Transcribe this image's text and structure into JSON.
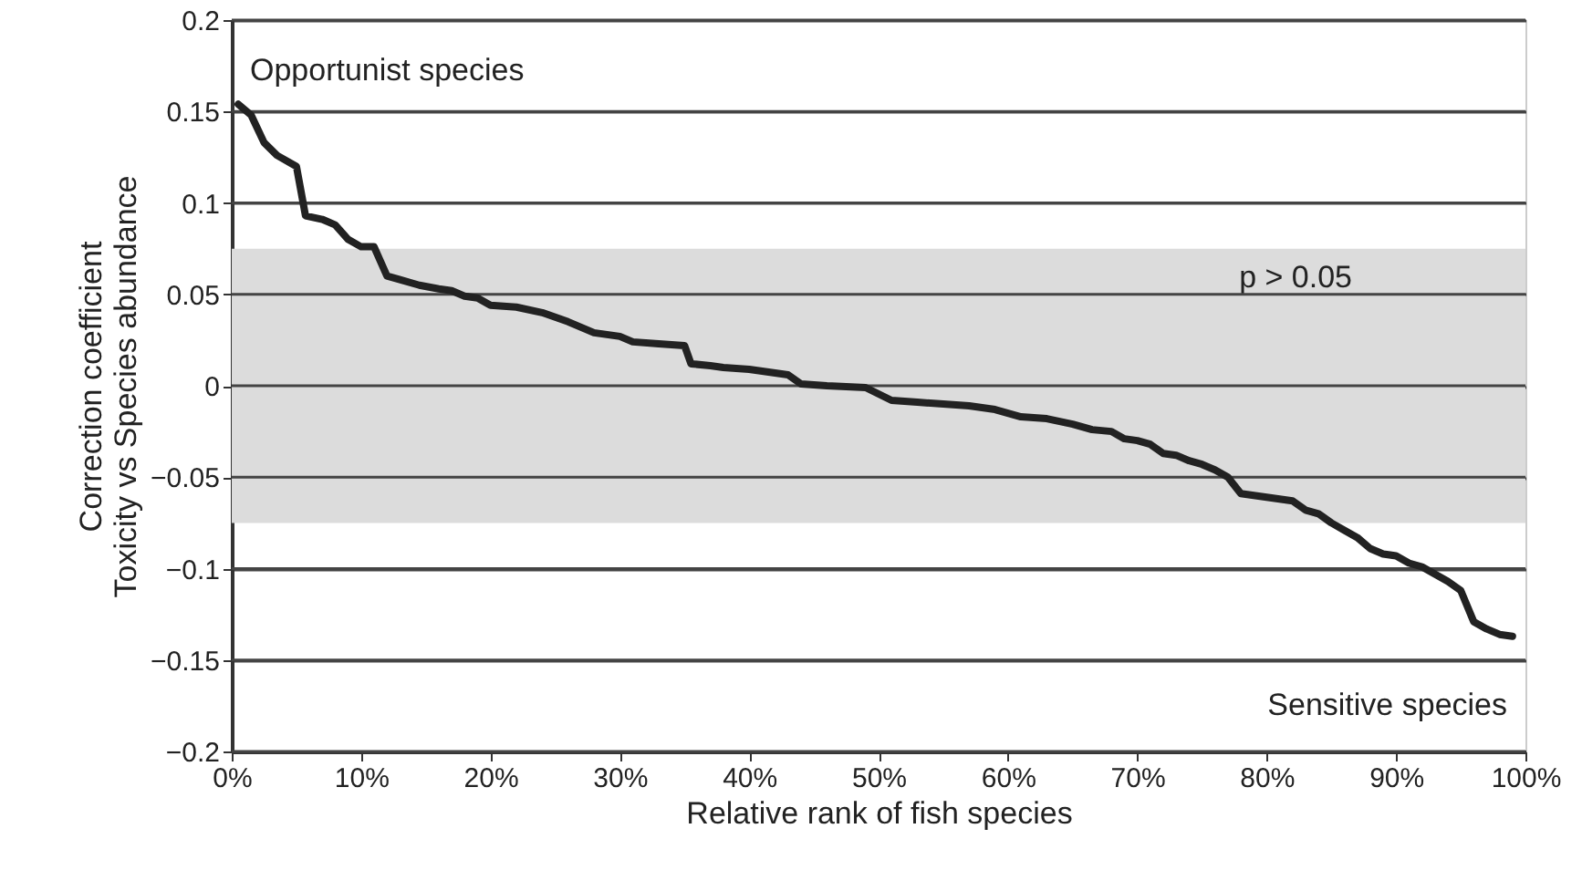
{
  "chart_data": {
    "type": "line",
    "xlabel": "Relative rank of fish species",
    "ylabel": "Correction coefficient\nToxicity vs Species abundance",
    "x": [
      0.5,
      1.5,
      2.5,
      3.5,
      5,
      5.7,
      7,
      8,
      9,
      10,
      11,
      12,
      13,
      14.5,
      16,
      17,
      18,
      19,
      20,
      22,
      24,
      26,
      28,
      30,
      31,
      33,
      35,
      35.5,
      37,
      38,
      40,
      42,
      43,
      44,
      46,
      49,
      51,
      53,
      55,
      57,
      59,
      61,
      63,
      65,
      66.5,
      68,
      69,
      70,
      71,
      72,
      73,
      74,
      75,
      76,
      77,
      78,
      79,
      80,
      82,
      83,
      84,
      85,
      86,
      87,
      88,
      89,
      90,
      91,
      92,
      93,
      94,
      95,
      96,
      97,
      98,
      99
    ],
    "series": [
      {
        "color": "#222222",
        "values": [
          0.154,
          0.148,
          0.133,
          0.126,
          0.12,
          0.093,
          0.091,
          0.088,
          0.08,
          0.076,
          0.076,
          0.06,
          0.058,
          0.055,
          0.053,
          0.052,
          0.049,
          0.048,
          0.044,
          0.043,
          0.04,
          0.035,
          0.029,
          0.027,
          0.024,
          0.023,
          0.022,
          0.012,
          0.011,
          0.01,
          0.009,
          0.007,
          0.006,
          0.001,
          0.0,
          -0.001,
          -0.008,
          -0.009,
          -0.01,
          -0.011,
          -0.013,
          -0.017,
          -0.018,
          -0.021,
          -0.024,
          -0.025,
          -0.029,
          -0.03,
          -0.032,
          -0.037,
          -0.038,
          -0.041,
          -0.043,
          -0.046,
          -0.05,
          -0.059,
          -0.06,
          -0.061,
          -0.063,
          -0.068,
          -0.07,
          -0.075,
          -0.079,
          -0.083,
          -0.089,
          -0.092,
          -0.093,
          -0.097,
          -0.099,
          -0.103,
          -0.107,
          -0.112,
          -0.129,
          -0.133,
          -0.136,
          -0.137
        ]
      }
    ],
    "xlim": [
      0,
      100
    ],
    "xticks": [
      {
        "value": 0,
        "label": "0%"
      },
      {
        "value": 10,
        "label": "10%"
      },
      {
        "value": 20,
        "label": "20%"
      },
      {
        "value": 30,
        "label": "30%"
      },
      {
        "value": 40,
        "label": "40%"
      },
      {
        "value": 50,
        "label": "50%"
      },
      {
        "value": 60,
        "label": "60%"
      },
      {
        "value": 70,
        "label": "70%"
      },
      {
        "value": 80,
        "label": "80%"
      },
      {
        "value": 90,
        "label": "90%"
      },
      {
        "value": 100,
        "label": "100%"
      }
    ],
    "ylim": [
      -0.2,
      0.2
    ],
    "yticks": [
      {
        "value": -0.2,
        "label": "−0.2"
      },
      {
        "value": -0.15,
        "label": "−0.15"
      },
      {
        "value": -0.1,
        "label": "−0.1"
      },
      {
        "value": -0.05,
        "label": "−0.05"
      },
      0,
      0.05,
      0.1,
      0.15,
      0.2
    ],
    "grid": "y",
    "marker": "none",
    "line_style": "solid",
    "bands": [
      {
        "axis": "y",
        "from": -0.075,
        "to": 0.075,
        "label": "p > 0.05",
        "color": "#dcdcdc"
      }
    ],
    "annotations": [
      "Opportunist species",
      "Sensitive species"
    ]
  }
}
